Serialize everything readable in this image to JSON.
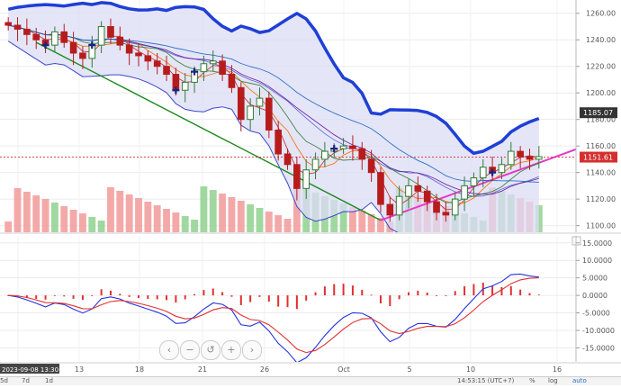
{
  "chart_data": [
    {
      "type": "candlestick",
      "yaxis_ticks": [
        "1260.00",
        "1240.00",
        "1220.00",
        "1200.00",
        "1180.00",
        "1160.00",
        "1140.00",
        "1120.00",
        "1100.00"
      ],
      "ylim": [
        1095,
        1270
      ],
      "price_tags": [
        {
          "label": "1185.07",
          "value": 1185.07,
          "color": "#333333"
        },
        {
          "label": "1151.61",
          "value": 1151.61,
          "color": "#d32f2f"
        }
      ],
      "xaxis_ticks": [
        "2023-09-08 13:30:00",
        "13",
        "18",
        "21",
        "26",
        "Oct",
        "5",
        "10",
        "16"
      ],
      "colors": {
        "up": "#2e7d32",
        "down": "#b71c1c",
        "bb_upper": "#1f3fd6",
        "bb_fill": "#dcdcf6",
        "trendline_down": "#1b8a1b",
        "trendline_up": "#e639c7",
        "last_price": "#d32f2f",
        "vol_up": "#8fd18f",
        "vol_down": "#f29a9a"
      },
      "close": [
        1251,
        1248,
        1244,
        1240,
        1236,
        1246,
        1238,
        1230,
        1226,
        1236,
        1250,
        1242,
        1236,
        1230,
        1228,
        1224,
        1220,
        1214,
        1202,
        1208,
        1216,
        1222,
        1224,
        1214,
        1204,
        1180,
        1190,
        1196,
        1172,
        1154,
        1146,
        1128,
        1142,
        1150,
        1156,
        1158,
        1160,
        1158,
        1150,
        1140,
        1116,
        1108,
        1122,
        1130,
        1126,
        1118,
        1110,
        1108,
        1120,
        1130,
        1136,
        1144,
        1140,
        1146,
        1156,
        1152,
        1150,
        1152
      ]
    },
    {
      "type": "line",
      "yaxis_ticks": [
        "15.0000",
        "10.0000",
        "5.0000",
        "0.0000",
        "-5.0000",
        "-10.0000",
        "-15.0000"
      ],
      "ylim": [
        -19,
        17
      ],
      "series_colors": {
        "macd": "#2233dd",
        "signal": "#e03030",
        "histogram": "#e03030"
      }
    }
  ],
  "bottom_bar": {
    "date_label": "2023-09-08 13:30:00",
    "range_7d": "7d",
    "range_1d": "1d",
    "left_edge": "5d",
    "clock": "14:53:15 (UTC+7)",
    "pct": "%",
    "log": "log",
    "auto": "auto"
  },
  "zoom_buttons": [
    "‹",
    "−",
    "↺",
    "+",
    "›"
  ]
}
